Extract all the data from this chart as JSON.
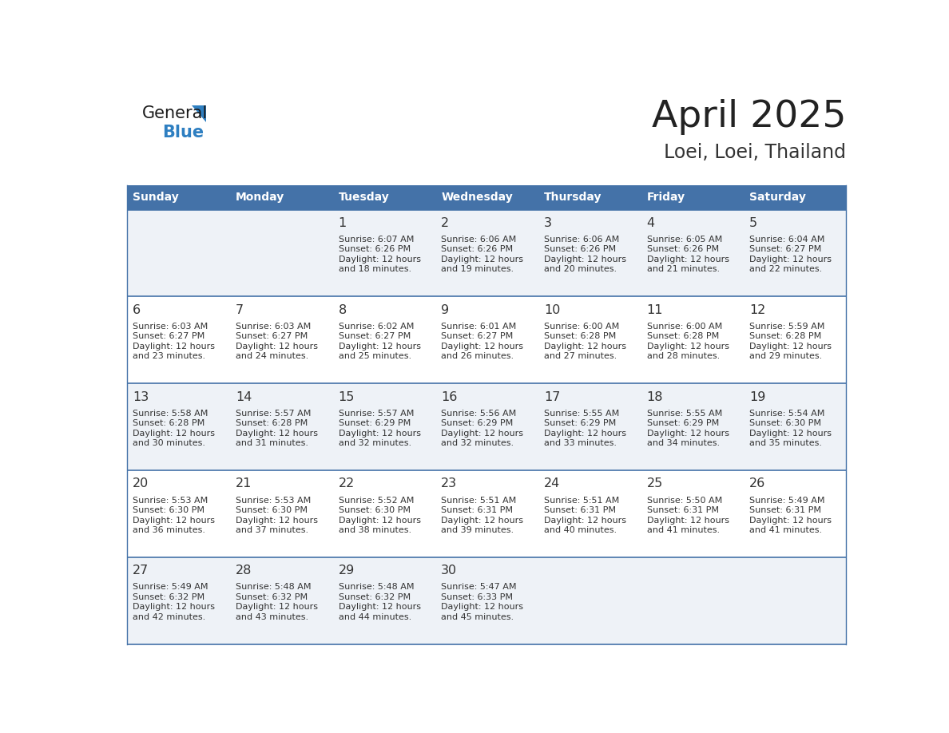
{
  "title": "April 2025",
  "subtitle": "Loei, Loei, Thailand",
  "days_of_week": [
    "Sunday",
    "Monday",
    "Tuesday",
    "Wednesday",
    "Thursday",
    "Friday",
    "Saturday"
  ],
  "header_bg_color": "#4472a8",
  "header_text_color": "#ffffff",
  "row_bg_colors": [
    "#eef2f7",
    "#ffffff",
    "#eef2f7",
    "#ffffff",
    "#eef2f7"
  ],
  "cell_border_color": "#4472a8",
  "day_number_color": "#333333",
  "text_color": "#333333",
  "title_color": "#222222",
  "subtitle_color": "#333333",
  "logo_general_color": "#1a1a1a",
  "logo_blue_color": "#2e7fc1",
  "calendar_data": [
    [
      null,
      null,
      {
        "day": 1,
        "sunrise": "6:07 AM",
        "sunset": "6:26 PM",
        "daylight_suffix": "18 minutes."
      },
      {
        "day": 2,
        "sunrise": "6:06 AM",
        "sunset": "6:26 PM",
        "daylight_suffix": "19 minutes."
      },
      {
        "day": 3,
        "sunrise": "6:06 AM",
        "sunset": "6:26 PM",
        "daylight_suffix": "20 minutes."
      },
      {
        "day": 4,
        "sunrise": "6:05 AM",
        "sunset": "6:26 PM",
        "daylight_suffix": "21 minutes."
      },
      {
        "day": 5,
        "sunrise": "6:04 AM",
        "sunset": "6:27 PM",
        "daylight_suffix": "22 minutes."
      }
    ],
    [
      {
        "day": 6,
        "sunrise": "6:03 AM",
        "sunset": "6:27 PM",
        "daylight_suffix": "23 minutes."
      },
      {
        "day": 7,
        "sunrise": "6:03 AM",
        "sunset": "6:27 PM",
        "daylight_suffix": "24 minutes."
      },
      {
        "day": 8,
        "sunrise": "6:02 AM",
        "sunset": "6:27 PM",
        "daylight_suffix": "25 minutes."
      },
      {
        "day": 9,
        "sunrise": "6:01 AM",
        "sunset": "6:27 PM",
        "daylight_suffix": "26 minutes."
      },
      {
        "day": 10,
        "sunrise": "6:00 AM",
        "sunset": "6:28 PM",
        "daylight_suffix": "27 minutes."
      },
      {
        "day": 11,
        "sunrise": "6:00 AM",
        "sunset": "6:28 PM",
        "daylight_suffix": "28 minutes."
      },
      {
        "day": 12,
        "sunrise": "5:59 AM",
        "sunset": "6:28 PM",
        "daylight_suffix": "29 minutes."
      }
    ],
    [
      {
        "day": 13,
        "sunrise": "5:58 AM",
        "sunset": "6:28 PM",
        "daylight_suffix": "30 minutes."
      },
      {
        "day": 14,
        "sunrise": "5:57 AM",
        "sunset": "6:28 PM",
        "daylight_suffix": "31 minutes."
      },
      {
        "day": 15,
        "sunrise": "5:57 AM",
        "sunset": "6:29 PM",
        "daylight_suffix": "32 minutes."
      },
      {
        "day": 16,
        "sunrise": "5:56 AM",
        "sunset": "6:29 PM",
        "daylight_suffix": "32 minutes."
      },
      {
        "day": 17,
        "sunrise": "5:55 AM",
        "sunset": "6:29 PM",
        "daylight_suffix": "33 minutes."
      },
      {
        "day": 18,
        "sunrise": "5:55 AM",
        "sunset": "6:29 PM",
        "daylight_suffix": "34 minutes."
      },
      {
        "day": 19,
        "sunrise": "5:54 AM",
        "sunset": "6:30 PM",
        "daylight_suffix": "35 minutes."
      }
    ],
    [
      {
        "day": 20,
        "sunrise": "5:53 AM",
        "sunset": "6:30 PM",
        "daylight_suffix": "36 minutes."
      },
      {
        "day": 21,
        "sunrise": "5:53 AM",
        "sunset": "6:30 PM",
        "daylight_suffix": "37 minutes."
      },
      {
        "day": 22,
        "sunrise": "5:52 AM",
        "sunset": "6:30 PM",
        "daylight_suffix": "38 minutes."
      },
      {
        "day": 23,
        "sunrise": "5:51 AM",
        "sunset": "6:31 PM",
        "daylight_suffix": "39 minutes."
      },
      {
        "day": 24,
        "sunrise": "5:51 AM",
        "sunset": "6:31 PM",
        "daylight_suffix": "40 minutes."
      },
      {
        "day": 25,
        "sunrise": "5:50 AM",
        "sunset": "6:31 PM",
        "daylight_suffix": "41 minutes."
      },
      {
        "day": 26,
        "sunrise": "5:49 AM",
        "sunset": "6:31 PM",
        "daylight_suffix": "41 minutes."
      }
    ],
    [
      {
        "day": 27,
        "sunrise": "5:49 AM",
        "sunset": "6:32 PM",
        "daylight_suffix": "42 minutes."
      },
      {
        "day": 28,
        "sunrise": "5:48 AM",
        "sunset": "6:32 PM",
        "daylight_suffix": "43 minutes."
      },
      {
        "day": 29,
        "sunrise": "5:48 AM",
        "sunset": "6:32 PM",
        "daylight_suffix": "44 minutes."
      },
      {
        "day": 30,
        "sunrise": "5:47 AM",
        "sunset": "6:33 PM",
        "daylight_suffix": "45 minutes."
      },
      null,
      null,
      null
    ]
  ]
}
